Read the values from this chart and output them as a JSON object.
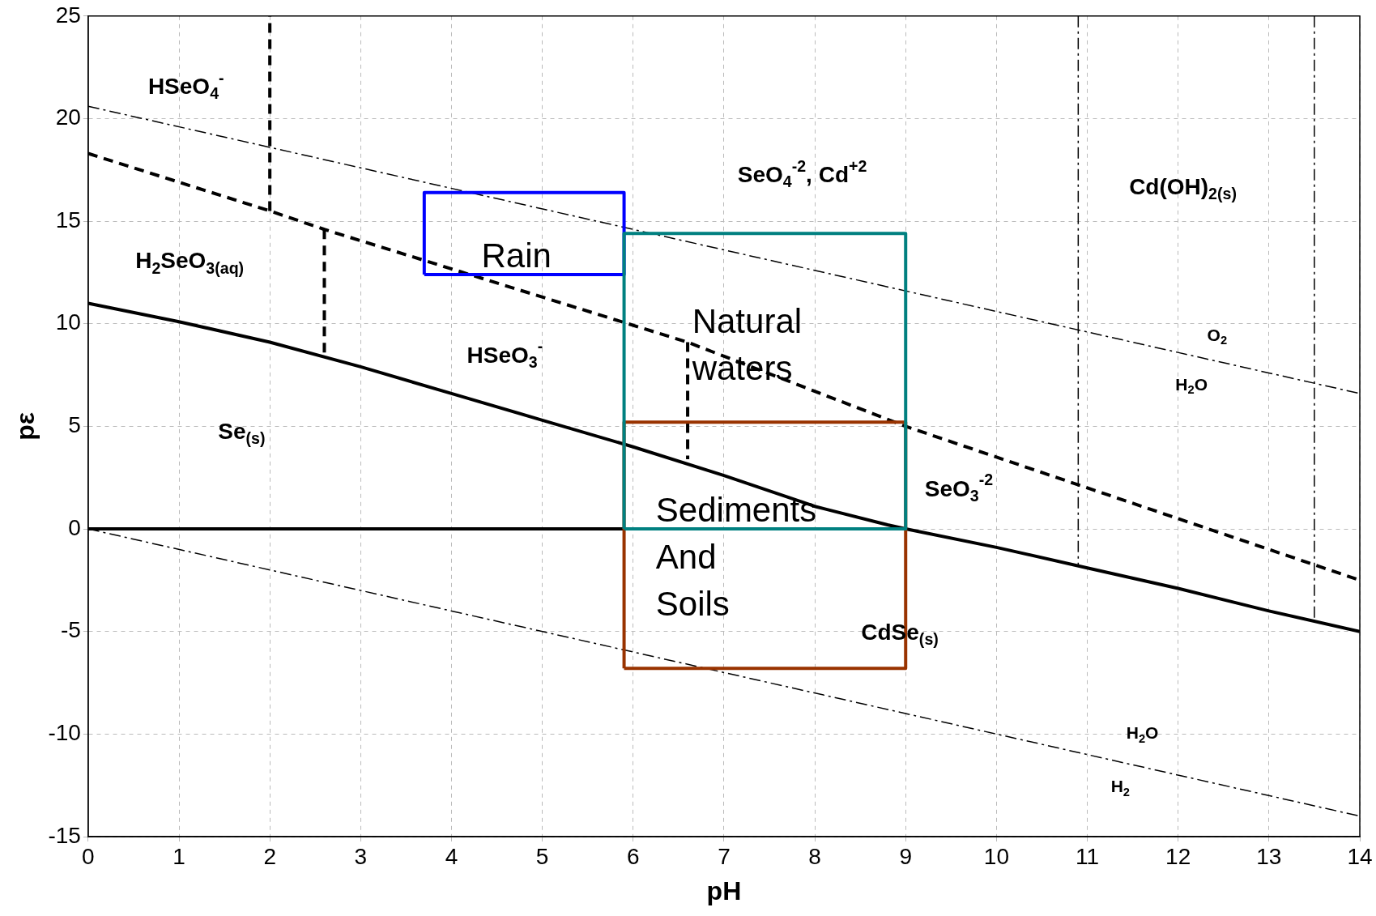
{
  "chart_data": {
    "type": "line",
    "xlabel": "pH",
    "ylabel": "pε",
    "xlim": [
      0,
      14
    ],
    "ylim": [
      -15,
      25
    ],
    "xticks": [
      0,
      1,
      2,
      3,
      4,
      5,
      6,
      7,
      8,
      9,
      10,
      11,
      12,
      13,
      14
    ],
    "yticks": [
      -15,
      -10,
      -5,
      0,
      5,
      10,
      15,
      20,
      25
    ],
    "grid": true,
    "legend": false,
    "marker": "none",
    "series": [
      {
        "color": "#000000",
        "line_style": "dotted",
        "x": [
          0,
          14
        ],
        "values": [
          20.6,
          6.6
        ]
      },
      {
        "color": "#000000",
        "line_style": "dotted",
        "x": [
          0,
          14
        ],
        "values": [
          0,
          -14
        ]
      },
      {
        "color": "#000000",
        "line_style": "solid",
        "x": [
          0,
          1,
          2,
          3,
          4,
          5,
          6,
          7,
          8,
          8.8,
          9,
          10,
          11,
          12,
          13,
          14
        ],
        "values": [
          11.0,
          10.1,
          9.1,
          7.9,
          6.6,
          5.3,
          4.0,
          2.6,
          1.1,
          0.2,
          0,
          -0.9,
          -1.9,
          -2.9,
          -4.0,
          -5.0
        ]
      },
      {
        "color": "#000000",
        "line_style": "solid",
        "x": [
          0,
          8.8
        ],
        "values": [
          0,
          0
        ]
      },
      {
        "color": "#000000",
        "line_style": "dashed",
        "x": [
          0,
          2,
          2.6,
          6.6,
          9,
          14
        ],
        "values": [
          18.3,
          15.5,
          14.6,
          9.1,
          5.0,
          -2.5
        ]
      },
      {
        "color": "#000000",
        "line_style": "dashed",
        "x": [
          2,
          2
        ],
        "values": [
          15.5,
          25
        ]
      },
      {
        "color": "#000000",
        "line_style": "dashed",
        "x": [
          2.6,
          2.6
        ],
        "values": [
          14.6,
          8.4
        ]
      },
      {
        "color": "#000000",
        "line_style": "dashed",
        "x": [
          6.6,
          6.6
        ],
        "values": [
          9.1,
          3.4
        ]
      },
      {
        "color": "#000000",
        "line_style": "dotted",
        "x": [
          10.9,
          10.9
        ],
        "values": [
          25,
          -1.8
        ]
      },
      {
        "color": "#000000",
        "line_style": "dotted",
        "x": [
          13.5,
          13.5
        ],
        "values": [
          25,
          -4.4
        ]
      },
      {
        "color": "#0000ff",
        "line_style": "solid",
        "x": [
          3.7,
          3.7,
          5.9,
          5.9
        ],
        "values": [
          12.4,
          16.4,
          16.4,
          12.4
        ]
      },
      {
        "color": "#0000ff",
        "line_style": "solid",
        "x": [
          3.7,
          5.9
        ],
        "values": [
          12.4,
          12.4
        ]
      },
      {
        "color": "#993300",
        "line_style": "solid",
        "x": [
          5.9,
          5.9,
          9,
          9
        ],
        "values": [
          -6.8,
          5.2,
          5.2,
          -6.8
        ]
      },
      {
        "color": "#993300",
        "line_style": "solid",
        "x": [
          5.9,
          9
        ],
        "values": [
          -6.8,
          -6.8
        ]
      },
      {
        "color": "#008080",
        "line_style": "solid",
        "x": [
          5.9,
          5.9,
          9,
          9
        ],
        "values": [
          0,
          14.4,
          14.4,
          0
        ]
      },
      {
        "color": "#008080",
        "line_style": "solid",
        "x": [
          5.9,
          9
        ],
        "values": [
          0,
          0
        ]
      }
    ],
    "annotations": [
      "HSeO$_{4}$$^{-}$",
      "H$_{2}$SeO$_{3(aq)}$",
      "HSeO$_{3}$$^{-}$",
      "Se$_{(s)}$",
      "SeO$_{4}$$^{-2}$, Cd$^{+2}$",
      "Cd(OH)$_{2(s)}$",
      "O$_{2}$",
      "H$_{2}$O",
      "SeO$_{3}$$^{-2}$",
      "CdSe$_{(s)}$",
      "H$_{2}$O",
      "H$_{2}$",
      "Rain",
      "Natural waters",
      "Sediments And Soils"
    ]
  }
}
